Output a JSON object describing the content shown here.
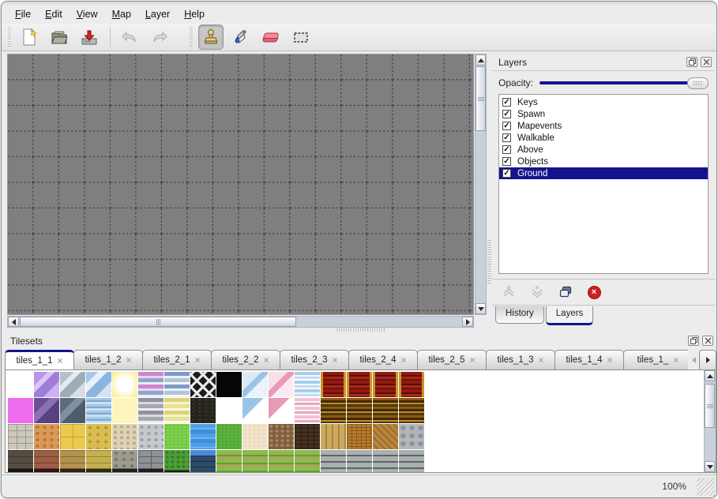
{
  "colors": {
    "accent_navy": "#14148e",
    "canvas_gray": "#7f7f7f",
    "window_bg": "#ececec",
    "eraser_pink": "#f5899a",
    "delete_red": "#cf2020"
  },
  "menubar": {
    "items": [
      {
        "label": "File"
      },
      {
        "label": "Edit"
      },
      {
        "label": "View"
      },
      {
        "label": "Map"
      },
      {
        "label": "Layer"
      },
      {
        "label": "Help"
      }
    ]
  },
  "toolbar": {
    "buttons": [
      {
        "icon": "new-file-icon"
      },
      {
        "icon": "open-folder-icon"
      },
      {
        "icon": "save-icon"
      },
      {
        "icon": "undo-icon",
        "disabled": true
      },
      {
        "icon": "redo-icon",
        "disabled": true
      },
      {
        "icon": "stamp-tool-icon",
        "selected": true
      },
      {
        "icon": "fill-tool-icon"
      },
      {
        "icon": "eraser-tool-icon"
      },
      {
        "icon": "rect-select-tool-icon"
      }
    ]
  },
  "layers_panel": {
    "title": "Layers",
    "header_icons": [
      "float-panel-icon",
      "close-panel-icon"
    ],
    "opacity_label": "Opacity:",
    "opacity_percent": 100,
    "layers": [
      {
        "label": "Keys",
        "checked": true,
        "selected": false
      },
      {
        "label": "Spawn",
        "checked": true,
        "selected": false
      },
      {
        "label": "Mapevents",
        "checked": true,
        "selected": false
      },
      {
        "label": "Walkable",
        "checked": true,
        "selected": false
      },
      {
        "label": "Above",
        "checked": true,
        "selected": false
      },
      {
        "label": "Objects",
        "checked": true,
        "selected": false
      },
      {
        "label": "Ground",
        "checked": true,
        "selected": true
      }
    ],
    "actions": [
      {
        "icon": "raise-layer-icon",
        "disabled": true
      },
      {
        "icon": "lower-layer-icon",
        "disabled": true
      },
      {
        "icon": "duplicate-layer-icon",
        "disabled": false
      },
      {
        "icon": "delete-layer-icon",
        "disabled": false
      }
    ],
    "tabs": {
      "history_label": "History",
      "layers_label": "Layers",
      "active": "Layers"
    }
  },
  "tilesets_panel": {
    "title": "Tilesets",
    "header_icons": [
      "float-panel-icon",
      "close-panel-icon"
    ],
    "tabs": [
      {
        "label": "tiles_1_1",
        "active": true
      },
      {
        "label": "tiles_1_2",
        "active": false
      },
      {
        "label": "tiles_2_1",
        "active": false
      },
      {
        "label": "tiles_2_2",
        "active": false
      },
      {
        "label": "tiles_2_3",
        "active": false
      },
      {
        "label": "tiles_2_4",
        "active": false
      },
      {
        "label": "tiles_2_5",
        "active": false
      },
      {
        "label": "tiles_1_3",
        "active": false
      },
      {
        "label": "tiles_1_4",
        "active": false
      },
      {
        "label": "tiles_1_",
        "active": false
      }
    ],
    "tiles_grid": [
      [
        "empty",
        "glass-purple",
        "glass-gray",
        "glass-blue",
        "glow-yellow",
        "stripe-pink",
        "stripe-blue",
        "lattice",
        "black",
        "glass-lightblue",
        "glass-pink",
        "ribbon-blue",
        "curtain-red",
        "curtain-red",
        "curtain-red",
        "curtain-red"
      ],
      [
        "magenta",
        "glass-darkpurple",
        "glass-darkgray",
        "water-glass",
        "pale-yellow",
        "stripe-gray",
        "stripe-yellow",
        "sill-dark",
        "empty",
        "corner-blue",
        "corner-pink",
        "ribbon-pink",
        "curtain-brown",
        "curtain-brown",
        "curtain-brown",
        "curtain-brown"
      ],
      [
        "flagstone",
        "cobble-orange",
        "tile-yellow",
        "path-yellow",
        "pebble-beige",
        "cobble-gray",
        "grass-bright",
        "water-blue",
        "grass-green",
        "sand",
        "dirt-pebble",
        "shingle-dark",
        "plank-vert",
        "wicker",
        "herringbone",
        "stone-round"
      ],
      [
        "wall-dark",
        "wall-red",
        "wall-tan",
        "wall-yellow",
        "wall-stone",
        "wall-brick",
        "hedge",
        "wall-blue",
        "field",
        "field",
        "field",
        "field",
        "plank-wall",
        "plank-wall",
        "plank-wall",
        "plank-wall"
      ]
    ]
  },
  "statusbar": {
    "zoom": "100%"
  }
}
